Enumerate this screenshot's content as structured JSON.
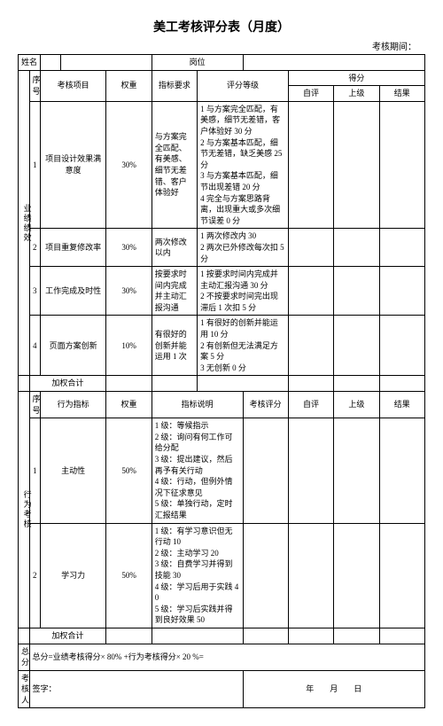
{
  "title": "美工考核评分表（月度）",
  "period_label": "考核期间：",
  "hdr": {
    "name": "姓名",
    "position": "岗位",
    "seq": "序号",
    "item": "考核项目",
    "weight": "权重",
    "requirement": "指标要求",
    "levels": "评分等级",
    "score": "得分",
    "self": "自评",
    "superior": "上级",
    "result": "结果",
    "behavior_indicator": "行为指标",
    "indicator_desc": "指标说明",
    "assess_score": "考核评分"
  },
  "sections": {
    "performance": "业绩绩效",
    "behavior": "行为考核"
  },
  "perf": [
    {
      "seq": "1",
      "item": "项目设计效果满意度",
      "weight": "30%",
      "req": "与方案完全匹配、有美感、细节无差错、客户体验好",
      "levels": "1 与方案完全匹配，有美感，细节无差错，客户体验好 30 分\n2 与方案基本匹配，细节无差错，缺乏美感 25 分\n3 与方案基本匹配，细节出现差错 20 分\n4 完全与方案思路背离，出现重大或多次细节误差 0 分"
    },
    {
      "seq": "2",
      "item": "项目重复修改率",
      "weight": "30%",
      "req": "两次修改以内",
      "levels": "1 两次修改内 30\n2 两次已外修改每次扣 5 分"
    },
    {
      "seq": "3",
      "item": "工作完成及时性",
      "weight": "30%",
      "req": "按要求时间内完成并主动汇报沟通",
      "levels": "1 按要求时间内完成并主动汇报沟通 30 分\n2 不按要求时间完出现滞后 1 次扣 5 分"
    },
    {
      "seq": "4",
      "item": "页面方案创新",
      "weight": "10%",
      "req": "有很好的创新并能运用 1 次",
      "levels": "1 有很好的创新并能运用 10 分\n2 有创新但无法满足方案 5 分\n3 无创新 0 分"
    }
  ],
  "weighted_total": "加权合计",
  "beh": [
    {
      "seq": "1",
      "item": "主动性",
      "weight": "50%",
      "desc": "1 级：等候指示\n2 级：询问有何工作可给分配\n3 级：提出建议，然后再予有关行动\n4 级：行动，但例外情况下征求意见\n5 级：单独行动，定时汇报结果"
    },
    {
      "seq": "2",
      "item": "学习力",
      "weight": "50%",
      "desc": "1 级：有学习意识但无行动 10\n2 级：主动学习 20\n3 级：自费学习并得到技能 30\n4 级：学习后用于实践 40\n5 级：学习后实践并得到良好效果 50"
    }
  ],
  "total_row": {
    "label": "总分",
    "formula": "总分=业绩考核得分× 80% +行为考核得分× 20 %="
  },
  "footer": {
    "assessor": "考核人",
    "sign": "签字：",
    "date": "年　　月　　日"
  }
}
